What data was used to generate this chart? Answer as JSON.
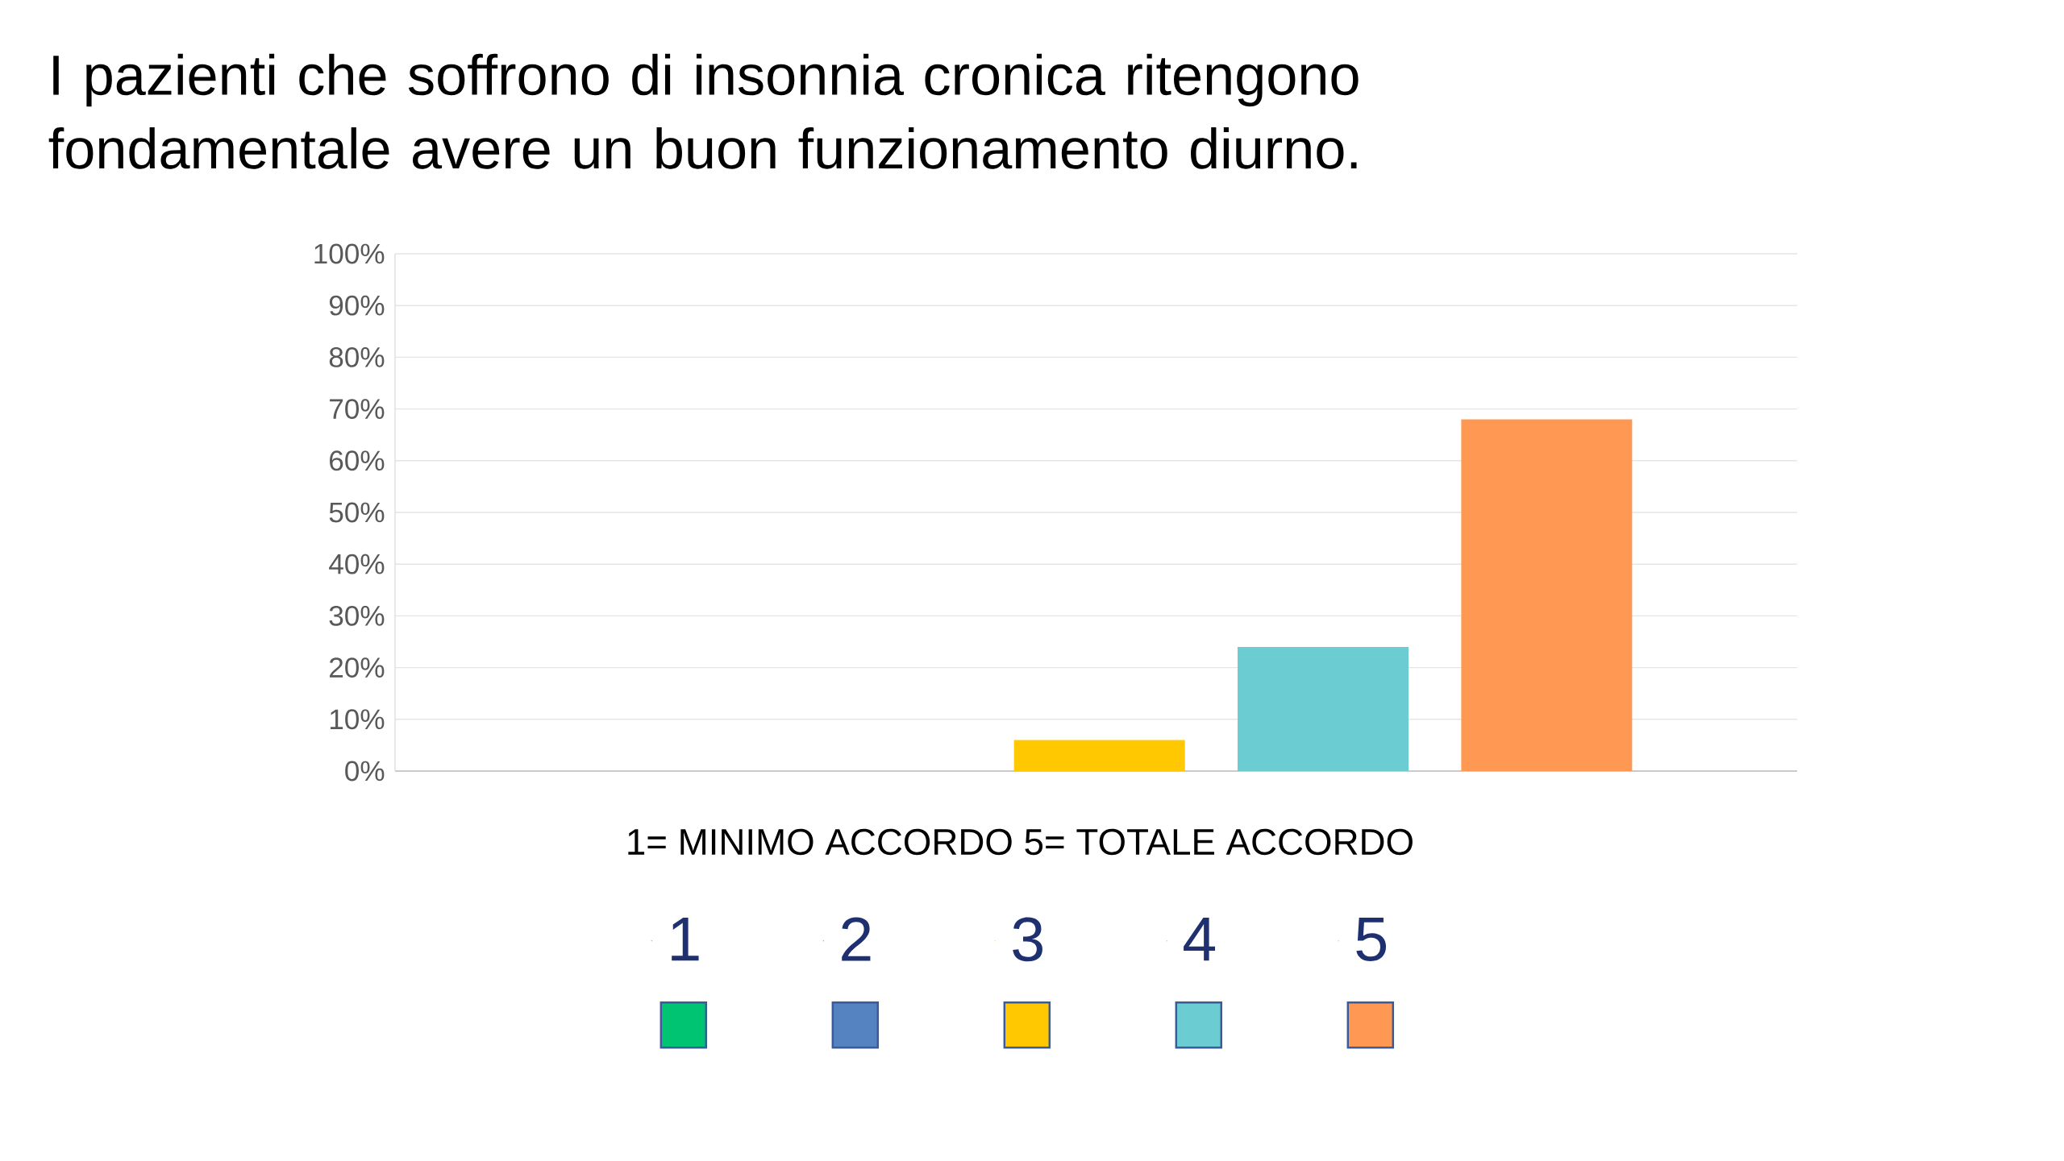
{
  "chart_data": {
    "type": "bar",
    "title": "I pazienti che soffrono di insonnia cronica ritengono fondamentale avere un buon funzionamento diurno.",
    "xlabel": "1= MINIMO ACCORDO 5= TOTALE ACCORDO",
    "categories": [
      null,
      null,
      null,
      null,
      null
    ],
    "series": [
      {
        "name": "1",
        "color": "#00c472",
        "values": [
          0,
          null,
          null,
          null,
          null
        ]
      },
      {
        "name": "2",
        "color": "#5582c0",
        "values": [
          null,
          0,
          null,
          null,
          null
        ]
      },
      {
        "name": "3",
        "color": "#ffc800",
        "values": [
          null,
          null,
          6,
          null,
          null
        ]
      },
      {
        "name": "4",
        "color": "#6bccd2",
        "values": [
          null,
          null,
          null,
          24,
          null
        ]
      },
      {
        "name": "5",
        "color": "#ff9852",
        "values": [
          null,
          null,
          null,
          null,
          68
        ]
      }
    ],
    "ylim": [
      0,
      100
    ],
    "yticks": [
      {
        "value": 0,
        "label": "0%"
      },
      {
        "value": 10,
        "label": "10%"
      },
      {
        "value": 20,
        "label": "20%"
      },
      {
        "value": 30,
        "label": "30%"
      },
      {
        "value": 40,
        "label": "40%"
      },
      {
        "value": 50,
        "label": "50%"
      },
      {
        "value": 60,
        "label": "60%"
      },
      {
        "value": 70,
        "label": "70%"
      },
      {
        "value": 80,
        "label": "80%"
      },
      {
        "value": 90,
        "label": "90%"
      },
      {
        "value": 100,
        "label": "100%"
      }
    ],
    "grid": "y",
    "legend": "bottom"
  }
}
